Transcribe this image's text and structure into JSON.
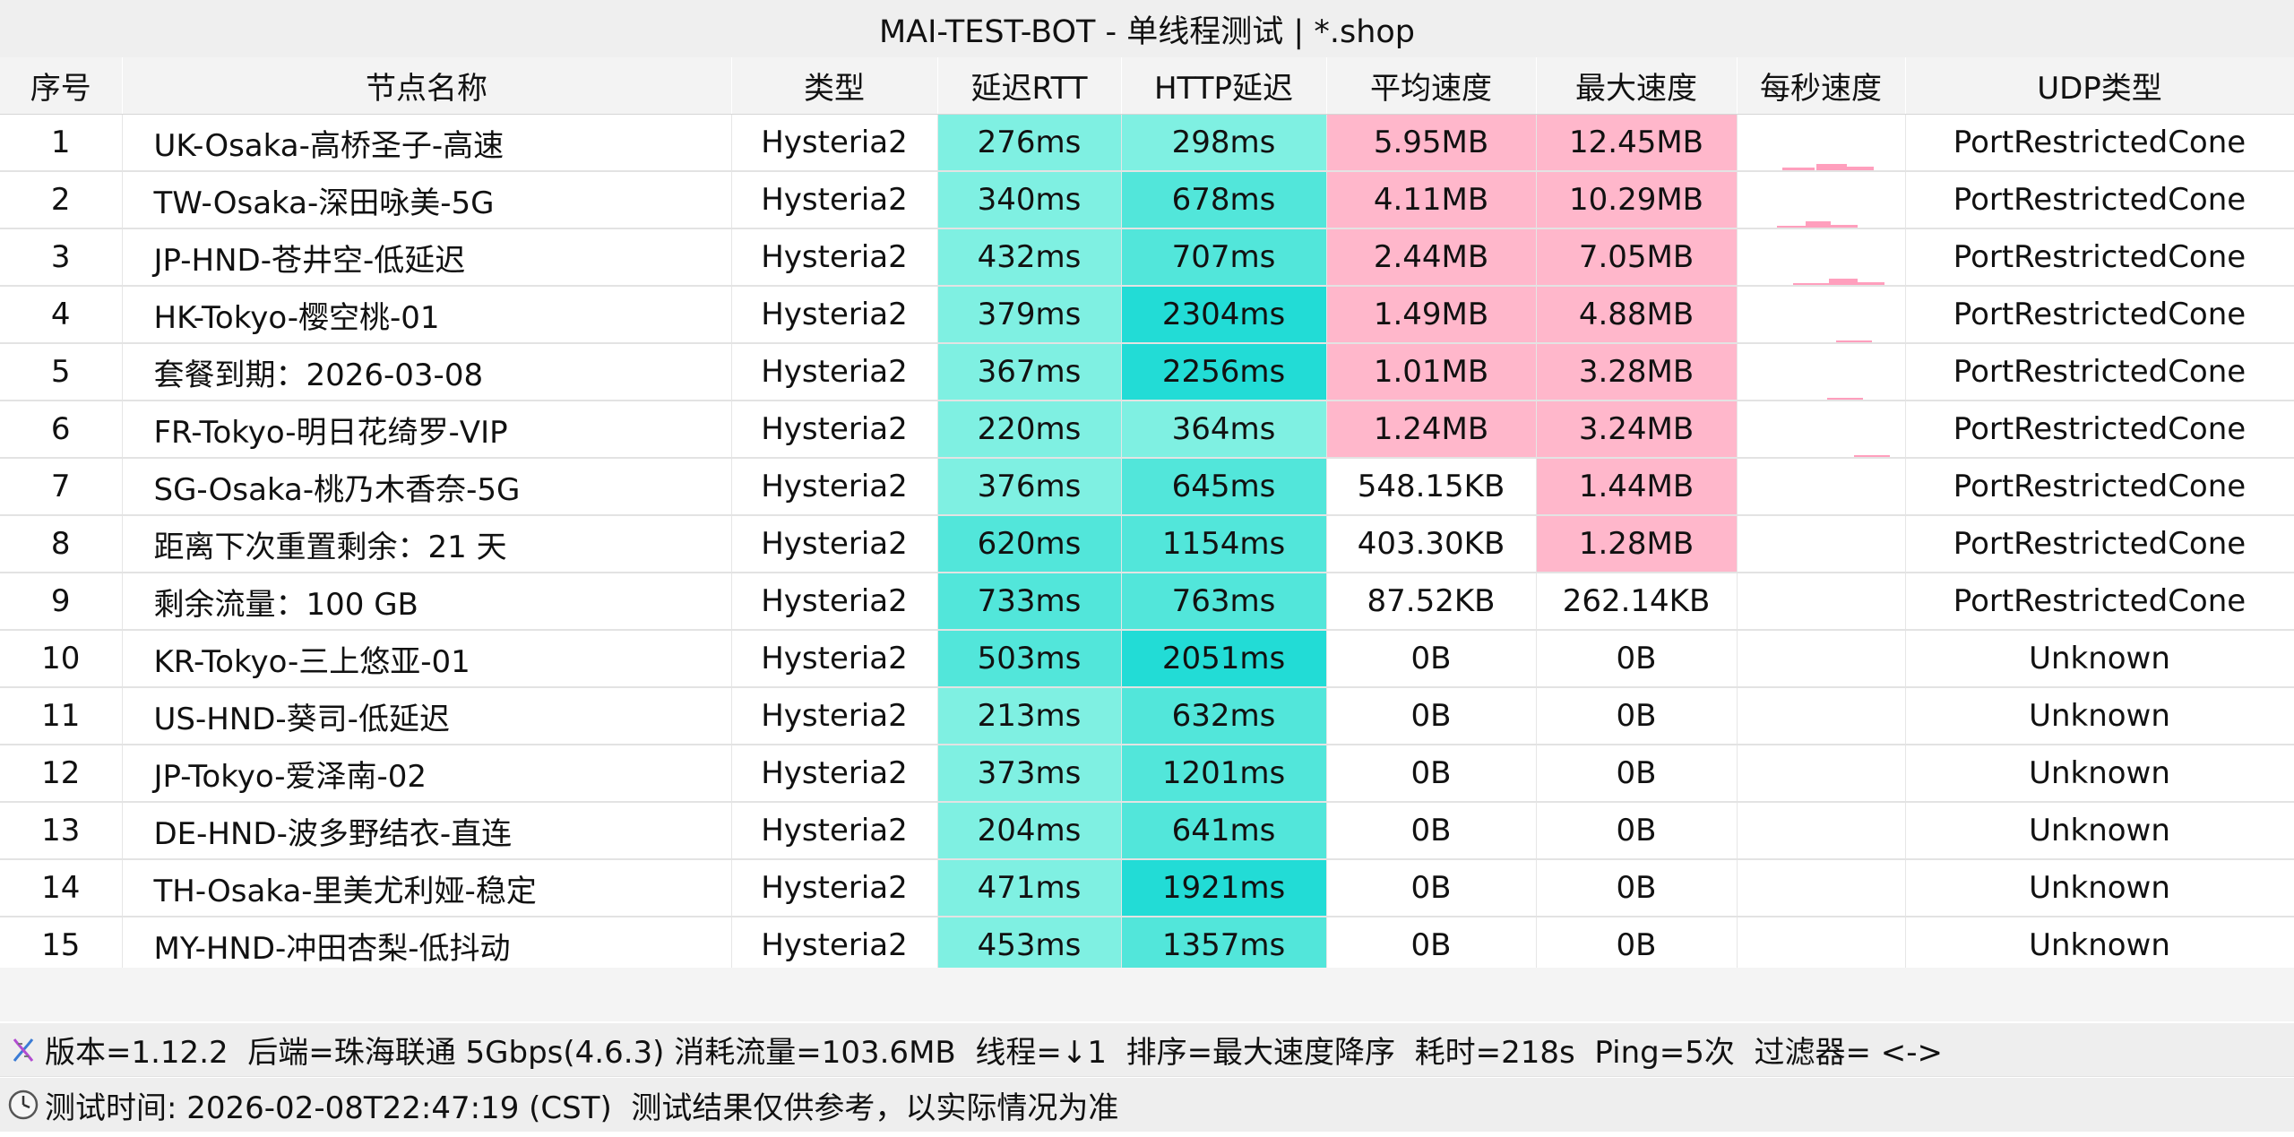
{
  "window": {
    "title": "MAI-TEST-BOT - 单线程测试 | *.shop"
  },
  "table": {
    "headers": [
      "序号",
      "节点名称",
      "类型",
      "延迟RTT",
      "HTTP延迟",
      "平均速度",
      "最大速度",
      "每秒速度",
      "UDP类型"
    ],
    "rows": [
      {
        "idx": "1",
        "name": "UK-Osaka-高桥圣子-高速",
        "type": "Hysteria2",
        "rtt": "276ms",
        "http": "298ms",
        "avg": "5.95MB",
        "max": "12.45MB",
        "udp": "PortRestrictedCone"
      },
      {
        "idx": "2",
        "name": "TW-Osaka-深田咏美-5G",
        "type": "Hysteria2",
        "rtt": "340ms",
        "http": "678ms",
        "avg": "4.11MB",
        "max": "10.29MB",
        "udp": "PortRestrictedCone"
      },
      {
        "idx": "3",
        "name": "JP-HND-苍井空-低延迟",
        "type": "Hysteria2",
        "rtt": "432ms",
        "http": "707ms",
        "avg": "2.44MB",
        "max": "7.05MB",
        "udp": "PortRestrictedCone"
      },
      {
        "idx": "4",
        "name": "HK-Tokyo-樱空桃-01",
        "type": "Hysteria2",
        "rtt": "379ms",
        "http": "2304ms",
        "avg": "1.49MB",
        "max": "4.88MB",
        "udp": "PortRestrictedCone"
      },
      {
        "idx": "5",
        "name": "套餐到期：2026-03-08",
        "type": "Hysteria2",
        "rtt": "367ms",
        "http": "2256ms",
        "avg": "1.01MB",
        "max": "3.28MB",
        "udp": "PortRestrictedCone"
      },
      {
        "idx": "6",
        "name": "FR-Tokyo-明日花绮罗-VIP",
        "type": "Hysteria2",
        "rtt": "220ms",
        "http": "364ms",
        "avg": "1.24MB",
        "max": "3.24MB",
        "udp": "PortRestrictedCone"
      },
      {
        "idx": "7",
        "name": "SG-Osaka-桃乃木香奈-5G",
        "type": "Hysteria2",
        "rtt": "376ms",
        "http": "645ms",
        "avg": "548.15KB",
        "max": "1.44MB",
        "udp": "PortRestrictedCone"
      },
      {
        "idx": "8",
        "name": "距离下次重置剩余：21 天",
        "type": "Hysteria2",
        "rtt": "620ms",
        "http": "1154ms",
        "avg": "403.30KB",
        "max": "1.28MB",
        "udp": "PortRestrictedCone"
      },
      {
        "idx": "9",
        "name": "剩余流量：100 GB",
        "type": "Hysteria2",
        "rtt": "733ms",
        "http": "763ms",
        "avg": "87.52KB",
        "max": "262.14KB",
        "udp": "PortRestrictedCone"
      },
      {
        "idx": "10",
        "name": "KR-Tokyo-三上悠亚-01",
        "type": "Hysteria2",
        "rtt": "503ms",
        "http": "2051ms",
        "avg": "0B",
        "max": "0B",
        "udp": "Unknown"
      },
      {
        "idx": "11",
        "name": "US-HND-葵司-低延迟",
        "type": "Hysteria2",
        "rtt": "213ms",
        "http": "632ms",
        "avg": "0B",
        "max": "0B",
        "udp": "Unknown"
      },
      {
        "idx": "12",
        "name": "JP-Tokyo-爱泽南-02",
        "type": "Hysteria2",
        "rtt": "373ms",
        "http": "1201ms",
        "avg": "0B",
        "max": "0B",
        "udp": "Unknown"
      },
      {
        "idx": "13",
        "name": "DE-HND-波多野结衣-直连",
        "type": "Hysteria2",
        "rtt": "204ms",
        "http": "641ms",
        "avg": "0B",
        "max": "0B",
        "udp": "Unknown"
      },
      {
        "idx": "14",
        "name": "TH-Osaka-里美尤利娅-稳定",
        "type": "Hysteria2",
        "rtt": "471ms",
        "http": "1921ms",
        "avg": "0B",
        "max": "0B",
        "udp": "Unknown"
      },
      {
        "idx": "15",
        "name": "MY-HND-冲田杏梨-低抖动",
        "type": "Hysteria2",
        "rtt": "453ms",
        "http": "1357ms",
        "avg": "0B",
        "max": "0B",
        "udp": "Unknown"
      }
    ]
  },
  "colors": {
    "latency_light": "#7ff0e2",
    "latency_mid": "#52e6da",
    "latency_strong": "#22dcd6",
    "speed_pink": "#ffb7cb",
    "sparkline": "#ff9fbd"
  },
  "footer": {
    "line1_icon": "dna-icon",
    "line1": "版本=1.12.2  后端=珠海联通 5Gbps(4.6.3) 消耗流量=103.6MB  线程=↓1  排序=最大速度降序  耗时=218s  Ping=5次  过滤器= <->",
    "line2_icon": "clock-icon",
    "line2": "测试时间: 2026-02-08T22:47:19 (CST)  测试结果仅供参考，以实际情况为准"
  }
}
